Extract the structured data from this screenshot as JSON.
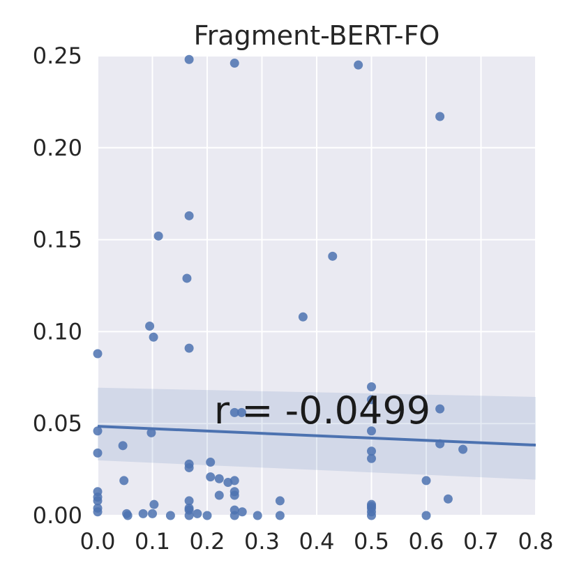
{
  "chart_data": {
    "type": "scatter",
    "title": "Fragment-BERT-FO",
    "xlabel": "",
    "ylabel": "",
    "xlim": [
      0.0,
      0.8
    ],
    "ylim": [
      0.0,
      0.25
    ],
    "xticks": [
      "0.0",
      "0.1",
      "0.2",
      "0.3",
      "0.4",
      "0.5",
      "0.6",
      "0.7",
      "0.8"
    ],
    "yticks": [
      "0.00",
      "0.05",
      "0.10",
      "0.15",
      "0.20",
      "0.25"
    ],
    "grid": true,
    "annotation": "r = -0.0499",
    "colors": {
      "background": "#eaeaf2",
      "grid": "#ffffff",
      "points": "#4c72b0",
      "line": "#4c72b0",
      "band": "#4c72b0"
    },
    "regression": {
      "x": [
        0.0,
        0.8
      ],
      "y": [
        0.0485,
        0.0383
      ],
      "ci_upper": [
        0.0695,
        0.0645
      ],
      "ci_lower": [
        0.03,
        0.0195
      ]
    },
    "points": [
      [
        0.167,
        0.248
      ],
      [
        0.25,
        0.246
      ],
      [
        0.476,
        0.245
      ],
      [
        0.625,
        0.217
      ],
      [
        0.167,
        0.163
      ],
      [
        0.111,
        0.152
      ],
      [
        0.429,
        0.141
      ],
      [
        0.163,
        0.129
      ],
      [
        0.375,
        0.108
      ],
      [
        0.095,
        0.103
      ],
      [
        0.102,
        0.097
      ],
      [
        0.167,
        0.091
      ],
      [
        0.0,
        0.088
      ],
      [
        0.5,
        0.07
      ],
      [
        0.5,
        0.063
      ],
      [
        0.625,
        0.058
      ],
      [
        0.25,
        0.056
      ],
      [
        0.263,
        0.056
      ],
      [
        0.5,
        0.046
      ],
      [
        0.0,
        0.046
      ],
      [
        0.098,
        0.045
      ],
      [
        0.046,
        0.038
      ],
      [
        0.625,
        0.039
      ],
      [
        0.667,
        0.036
      ],
      [
        0.5,
        0.035
      ],
      [
        0.0,
        0.034
      ],
      [
        0.5,
        0.031
      ],
      [
        0.206,
        0.029
      ],
      [
        0.167,
        0.028
      ],
      [
        0.167,
        0.026
      ],
      [
        0.206,
        0.021
      ],
      [
        0.222,
        0.02
      ],
      [
        0.238,
        0.018
      ],
      [
        0.25,
        0.019
      ],
      [
        0.048,
        0.019
      ],
      [
        0.6,
        0.019
      ],
      [
        0.0,
        0.013
      ],
      [
        0.25,
        0.013
      ],
      [
        0.25,
        0.011
      ],
      [
        0.222,
        0.011
      ],
      [
        0.0,
        0.01
      ],
      [
        0.0,
        0.008
      ],
      [
        0.64,
        0.009
      ],
      [
        0.333,
        0.008
      ],
      [
        0.167,
        0.008
      ],
      [
        0.103,
        0.006
      ],
      [
        0.5,
        0.006
      ],
      [
        0.5,
        0.005
      ],
      [
        0.167,
        0.004
      ],
      [
        0.5,
        0.004
      ],
      [
        0.0,
        0.004
      ],
      [
        0.167,
        0.003
      ],
      [
        0.25,
        0.003
      ],
      [
        0.0,
        0.002
      ],
      [
        0.5,
        0.002
      ],
      [
        0.264,
        0.002
      ],
      [
        0.053,
        0.001
      ],
      [
        0.083,
        0.001
      ],
      [
        0.1,
        0.001
      ],
      [
        0.133,
        0.0
      ],
      [
        0.182,
        0.001
      ],
      [
        0.2,
        0.0
      ],
      [
        0.292,
        0.0
      ],
      [
        0.333,
        0.0
      ],
      [
        0.5,
        0.0
      ],
      [
        0.6,
        0.0
      ],
      [
        0.167,
        0.0
      ],
      [
        0.25,
        0.0
      ],
      [
        0.055,
        0.0
      ]
    ]
  }
}
